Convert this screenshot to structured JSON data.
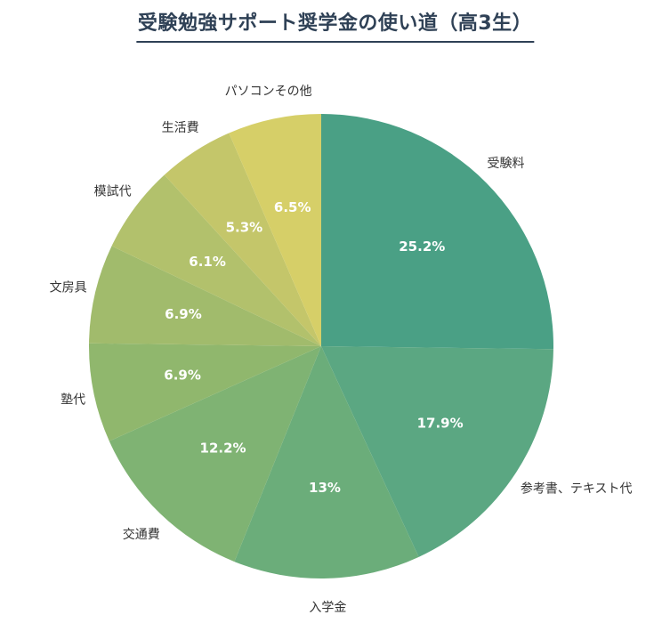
{
  "chart_data": {
    "type": "pie",
    "title": "受験勉強サポート奨学金の使い道（高3生）",
    "start": "12 o'clock, clockwise",
    "slices": [
      {
        "label": "受験料",
        "value": 25.2,
        "value_label": "25.2%",
        "color": "#4aa085"
      },
      {
        "label": "参考書、テキスト代",
        "value": 17.9,
        "value_label": "17.9%",
        "color": "#5ba782"
      },
      {
        "label": "入学金",
        "value": 13,
        "value_label": "13%",
        "color": "#6bad7a"
      },
      {
        "label": "交通費",
        "value": 12.2,
        "value_label": "12.2%",
        "color": "#7fb373"
      },
      {
        "label": "塾代",
        "value": 6.9,
        "value_label": "6.9%",
        "color": "#90b76d"
      },
      {
        "label": "文房具",
        "value": 6.9,
        "value_label": "6.9%",
        "color": "#a1bb6c"
      },
      {
        "label": "模試代",
        "value": 6.1,
        "value_label": "6.1%",
        "color": "#b2c16c"
      },
      {
        "label": "生活費",
        "value": 5.3,
        "value_label": "5.3%",
        "color": "#c4c66a"
      },
      {
        "label": "パソコンその他",
        "value": 6.5,
        "value_label": "6.5%",
        "color": "#d6cf68"
      }
    ]
  }
}
